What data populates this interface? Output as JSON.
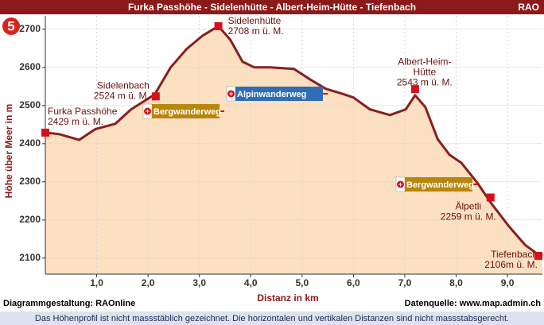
{
  "chart_data": {
    "type": "elevation-profile",
    "title": "Furka Passhöhe - Sidelenhütte - Albert-Heim-Hütte - Tiefenbach",
    "corner_label": "RAO",
    "badge": "5",
    "x_label": "Distanz in km",
    "y_label": "Höhe über Meer in m",
    "xlim": [
      0,
      9.68
    ],
    "ylim": [
      2058,
      2735
    ],
    "xticks": [
      {
        "value": 1,
        "label": "1,0"
      },
      {
        "value": 2,
        "label": "2,0"
      },
      {
        "value": 3,
        "label": "3,0"
      },
      {
        "value": 4,
        "label": "4,0"
      },
      {
        "value": 5,
        "label": "5,0"
      },
      {
        "value": 6,
        "label": "6,0"
      },
      {
        "value": 7,
        "label": "7,0"
      },
      {
        "value": 8,
        "label": "8,0"
      },
      {
        "value": 9,
        "label": "9,0"
      }
    ],
    "yticks": [
      2100,
      2200,
      2300,
      2400,
      2500,
      2600,
      2700
    ],
    "grid": true,
    "line_color": "#8b1e1e",
    "fill_color": "#fbe0c2",
    "profile": {
      "x": [
        0,
        0.27,
        0.66,
        0.97,
        1.36,
        1.67,
        2.13,
        2.44,
        2.75,
        3.06,
        3.37,
        3.6,
        3.84,
        4.07,
        4.38,
        4.84,
        5.15,
        5.46,
        5.78,
        6.0,
        6.32,
        6.71,
        7.02,
        7.2,
        7.4,
        7.64,
        7.87,
        8.1,
        8.41,
        8.67,
        9.03,
        9.34,
        9.57,
        9.68
      ],
      "elevation": [
        2429,
        2425,
        2410,
        2438,
        2452,
        2490,
        2529,
        2600,
        2648,
        2683,
        2708,
        2673,
        2615,
        2600,
        2600,
        2596,
        2569,
        2544,
        2531,
        2521,
        2490,
        2475,
        2490,
        2527,
        2496,
        2412,
        2371,
        2350,
        2298,
        2246,
        2183,
        2135,
        2112,
        2106
      ]
    },
    "waypoints": [
      {
        "label_lines": [
          "Furka Passhöhe",
          "2429 m ü. M."
        ],
        "x": 0,
        "elevation": 2429
      },
      {
        "label_lines": [
          "Sidelenbach",
          "2524 m ü. M."
        ],
        "x": 2.15,
        "elevation": 2524
      },
      {
        "label_lines": [
          "Sidelenhütte",
          "2708 m ü. M."
        ],
        "x": 3.37,
        "elevation": 2708
      },
      {
        "label_lines": [
          "Albert-Heim-",
          "Hütte",
          "2543 m ü. M."
        ],
        "x": 7.2,
        "elevation": 2543
      },
      {
        "label_lines": [
          "Älpetli",
          "2259 m ü. M."
        ],
        "x": 8.67,
        "elevation": 2259
      },
      {
        "label_lines": [
          "Tiefenbach",
          "2106m ü. M."
        ],
        "x": 9.68,
        "elevation": 2106
      }
    ],
    "signs": [
      {
        "text": "Bergwanderweg",
        "color": "#b8860b"
      },
      {
        "text": "Alpinwanderweg",
        "color": "#2f6db5"
      },
      {
        "text": "Bergwanderweg",
        "color": "#b8860b"
      }
    ],
    "footer_left": "Diagrammgestaltung: RAOnline",
    "footer_right": "Datenquelle: www.map.admin.ch",
    "note": "Das Höhenprofil ist nicht massstäblich gezeichnet. Die horizontalen und vertikalen Distanzen sind nicht massstabsgerecht."
  }
}
